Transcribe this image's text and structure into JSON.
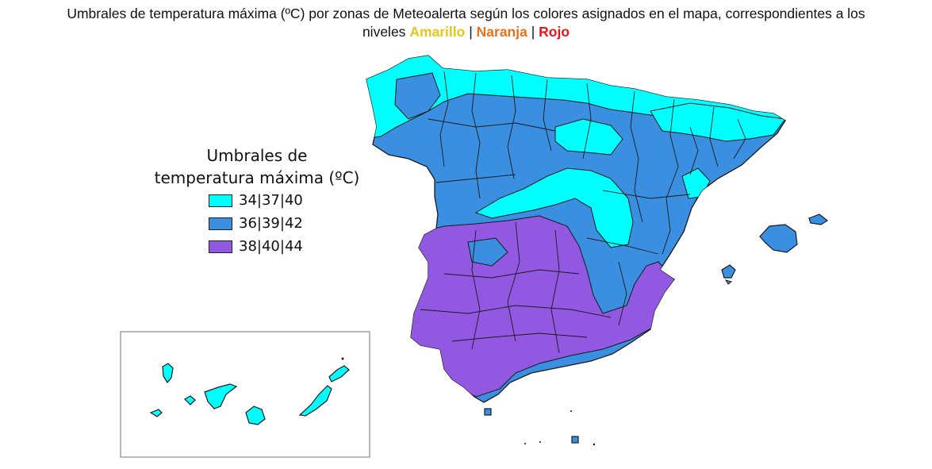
{
  "title": {
    "line1": "Umbrales de temperatura máxima (ºC) por zonas de Meteoalerta según los colores asignados en el mapa, correspondientes a los",
    "line2_prefix": "niveles",
    "level_yellow": "Amarillo",
    "sep1": "|",
    "level_orange": "Naranja",
    "sep2": "|",
    "level_red": "Rojo"
  },
  "level_colors": {
    "yellow": "#e6c619",
    "orange": "#e6731a",
    "red": "#e8161b"
  },
  "legend": {
    "title_line1": "Umbrales de",
    "title_line2": "temperatura máxima (ºC)",
    "items": [
      {
        "label": "34|37|40",
        "color": "#00ffff"
      },
      {
        "label": "36|39|42",
        "color": "#3a8fe0"
      },
      {
        "label": "38|40|44",
        "color": "#9358e2"
      }
    ]
  },
  "map": {
    "regions": [
      "Península",
      "Illes Balears",
      "Canarias",
      "Ceuta",
      "Melilla"
    ],
    "border_color": "#1a1a1a"
  }
}
